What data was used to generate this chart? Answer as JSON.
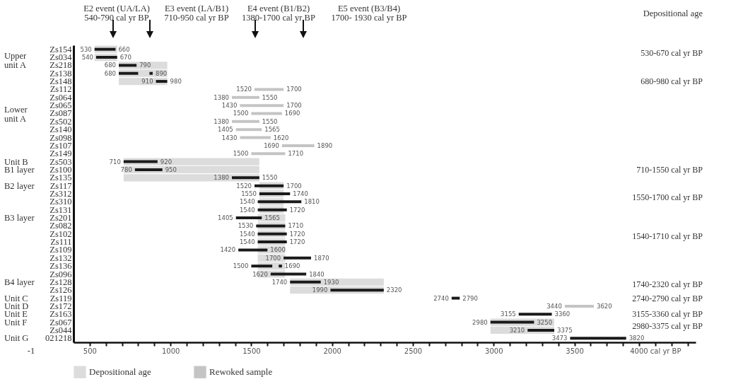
{
  "chart_data": {
    "type": "bar",
    "orientation": "horizontal",
    "grid": false,
    "legend": "bottom left",
    "categories": [
      "Zs154",
      "Zs034",
      "Zs218",
      "Zs138",
      "Zs148",
      "Zs112",
      "Zs064",
      "Zs065",
      "Zs087",
      "Zs502",
      "Zs140",
      "Zs098",
      "Zs107",
      "Zs149",
      "Zs503",
      "Zs100",
      "Zs135",
      "Zs117",
      "Zs312",
      "Zs310",
      "Zs131",
      "Zs201",
      "Zs082",
      "Zs102",
      "Zs111",
      "Zs109",
      "Zs132",
      "Zs136",
      "Zs096",
      "Zs128",
      "Zs126",
      "Zs119",
      "Zs172",
      "Zs163",
      "Zs067",
      "Zs044",
      "021218"
    ],
    "xlim": [
      400,
      4250
    ],
    "xticks": [
      500,
      {
        "value": 600,
        "label": null
      },
      {
        "value": 700,
        "label": null
      },
      {
        "value": 800,
        "label": null
      },
      {
        "value": 900,
        "label": null
      },
      1000,
      {
        "value": 1100,
        "label": null
      },
      {
        "value": 1200,
        "label": null
      },
      {
        "value": 1300,
        "label": null
      },
      {
        "value": 1400,
        "label": null
      },
      1500,
      {
        "value": 1600,
        "label": null
      },
      {
        "value": 1700,
        "label": null
      },
      {
        "value": 1800,
        "label": null
      },
      {
        "value": 1900,
        "label": null
      },
      2000,
      {
        "value": 2100,
        "label": null
      },
      {
        "value": 2200,
        "label": null
      },
      {
        "value": 2300,
        "label": null
      },
      {
        "value": 2400,
        "label": null
      },
      2500,
      {
        "value": 2600,
        "label": null
      },
      {
        "value": 2700,
        "label": null
      },
      {
        "value": 2800,
        "label": null
      },
      {
        "value": 2900,
        "label": null
      },
      3000,
      {
        "value": 3100,
        "label": null
      },
      {
        "value": 3200,
        "label": null
      },
      {
        "value": 3300,
        "label": null
      },
      {
        "value": 3400,
        "label": null
      },
      3500,
      {
        "value": 3600,
        "label": null
      },
      {
        "value": 3700,
        "label": null
      },
      {
        "value": 3800,
        "label": null
      },
      {
        "value": 3900,
        "label": null
      },
      {
        "value": 4000,
        "label": "4000 cal yr BP"
      },
      {
        "value": 4100,
        "label": null
      },
      {
        "value": 4200,
        "label": null
      }
    ],
    "series": [
      {
        "name": "Depositional age",
        "color": "#dcdcdc",
        "base": [
          530,
          530,
          680,
          680,
          680,
          null,
          null,
          null,
          null,
          null,
          null,
          null,
          null,
          null,
          710,
          710,
          710,
          1550,
          1550,
          1550,
          1550,
          1540,
          1540,
          1540,
          1540,
          1540,
          1540,
          1540,
          1540,
          1740,
          1740,
          null,
          null,
          null,
          2980,
          2980,
          null
        ],
        "values": [
          140,
          140,
          300,
          300,
          300,
          null,
          null,
          null,
          null,
          null,
          null,
          null,
          null,
          null,
          840,
          840,
          840,
          150,
          150,
          150,
          150,
          170,
          170,
          170,
          170,
          170,
          170,
          170,
          170,
          580,
          580,
          null,
          null,
          null,
          395,
          395,
          null
        ]
      },
      {
        "color": "#1a1a1a",
        "base": [
          530,
          540,
          680,
          680,
          910,
          null,
          null,
          null,
          null,
          null,
          null,
          null,
          null,
          null,
          710,
          780,
          1380,
          1520,
          1550,
          1540,
          1540,
          1405,
          1530,
          1540,
          1540,
          1420,
          1700,
          1500,
          1620,
          1740,
          1990,
          2740,
          null,
          3155,
          2980,
          3210,
          3473
        ],
        "values": [
          130,
          130,
          110,
          120,
          70,
          null,
          null,
          null,
          null,
          null,
          null,
          null,
          null,
          null,
          210,
          170,
          170,
          180,
          190,
          270,
          180,
          160,
          180,
          180,
          180,
          180,
          170,
          130,
          220,
          190,
          330,
          50,
          null,
          205,
          270,
          165,
          347
        ]
      },
      {
        "color": "#1a1a1a",
        "base": [
          null,
          null,
          null,
          870,
          null,
          null,
          null,
          null,
          null,
          null,
          null,
          null,
          null,
          null,
          null,
          null,
          null,
          null,
          null,
          null,
          null,
          null,
          null,
          null,
          null,
          null,
          null,
          1670,
          null,
          null,
          null,
          null,
          null,
          null,
          null,
          null,
          null
        ],
        "values": [
          null,
          null,
          null,
          20,
          null,
          null,
          null,
          null,
          null,
          null,
          null,
          null,
          null,
          null,
          null,
          null,
          null,
          null,
          null,
          null,
          null,
          null,
          null,
          null,
          null,
          null,
          null,
          20,
          null,
          null,
          null,
          null,
          null,
          null,
          null,
          null,
          null
        ]
      },
      {
        "name": "Rewoked sample",
        "color": "#c4c4c4",
        "base": [
          null,
          null,
          null,
          null,
          null,
          1520,
          1380,
          1430,
          1500,
          1380,
          1405,
          1430,
          1690,
          1500,
          null,
          null,
          null,
          null,
          null,
          null,
          null,
          null,
          null,
          null,
          null,
          null,
          null,
          null,
          null,
          null,
          null,
          null,
          3440,
          null,
          null,
          null,
          null
        ],
        "values": [
          null,
          null,
          null,
          null,
          null,
          180,
          170,
          270,
          190,
          170,
          160,
          190,
          200,
          210,
          null,
          null,
          null,
          null,
          null,
          null,
          null,
          null,
          null,
          null,
          null,
          null,
          null,
          null,
          null,
          null,
          null,
          null,
          180,
          null,
          null,
          null,
          null
        ]
      }
    ],
    "annotations": [
      "Depositional age",
      "-1",
      "E2 event (UA/LA)\n540-790 cal yr BP",
      "E3 event (LA/B1)\n710-950 cal yr BP",
      "E4 event (B1/B2)\n1380-1700 cal yr BP",
      "E5 event (B3/B4)\n1700- 1930 cal yr BP",
      "Upper\nunit A",
      "Lower\nunit A",
      "Unit B",
      "B1 layer",
      "B2 layer",
      "B3 layer",
      "B4 layer",
      "Unit C",
      "Unit D",
      "Unit E",
      "Unit F",
      "Unit G",
      "530-670 cal yr BP",
      "680-980 cal yr BP",
      "710-1550 cal yr BP",
      "1550-1700 cal yr BP",
      "1540-1710 cal yr BP",
      "1740-2320 cal yr BP",
      "2740-2790 cal yr BP",
      "3155-3360 cal yr BP",
      "2980-3375 cal yr BP",
      {
        "text": "530",
        "x": 530,
        "y": "Zs154"
      },
      {
        "text": "660",
        "x": 660,
        "y": "Zs154"
      },
      {
        "text": "540",
        "x": 540,
        "y": "Zs034"
      },
      {
        "text": "670",
        "x": 670,
        "y": "Zs034"
      },
      {
        "text": "680",
        "x": 680,
        "y": "Zs218"
      },
      {
        "text": "790",
        "x": 790,
        "y": "Zs218"
      },
      {
        "text": "680",
        "x": 680,
        "y": "Zs138"
      },
      {
        "text": "890",
        "x": 890,
        "y": "Zs138"
      },
      {
        "text": "910",
        "x": 910,
        "y": "Zs148"
      },
      {
        "text": "980",
        "x": 980,
        "y": "Zs148"
      },
      {
        "text": "1520",
        "x": 1520,
        "y": "Zs112"
      },
      {
        "text": "1700",
        "x": 1700,
        "y": "Zs112"
      },
      {
        "text": "1380",
        "x": 1380,
        "y": "Zs064"
      },
      {
        "text": "1550",
        "x": 1550,
        "y": "Zs064"
      },
      {
        "text": "1430",
        "x": 1430,
        "y": "Zs065"
      },
      {
        "text": "1700",
        "x": 1700,
        "y": "Zs065"
      },
      {
        "text": "1500",
        "x": 1500,
        "y": "Zs087"
      },
      {
        "text": "1690",
        "x": 1690,
        "y": "Zs087"
      },
      {
        "text": "1380",
        "x": 1380,
        "y": "Zs502"
      },
      {
        "text": "1550",
        "x": 1550,
        "y": "Zs502"
      },
      {
        "text": "1405",
        "x": 1405,
        "y": "Zs140"
      },
      {
        "text": "1565",
        "x": 1565,
        "y": "Zs140"
      },
      {
        "text": "1430",
        "x": 1430,
        "y": "Zs098"
      },
      {
        "text": "1620",
        "x": 1620,
        "y": "Zs098"
      },
      {
        "text": "1690",
        "x": 1690,
        "y": "Zs107"
      },
      {
        "text": "1890",
        "x": 1890,
        "y": "Zs107"
      },
      {
        "text": "1500",
        "x": 1500,
        "y": "Zs149"
      },
      {
        "text": "1710",
        "x": 1710,
        "y": "Zs149"
      },
      {
        "text": "710",
        "x": 710,
        "y": "Zs503"
      },
      {
        "text": "920",
        "x": 920,
        "y": "Zs503"
      },
      {
        "text": "780",
        "x": 780,
        "y": "Zs100"
      },
      {
        "text": "950",
        "x": 950,
        "y": "Zs100"
      },
      {
        "text": "1380",
        "x": 1380,
        "y": "Zs135"
      },
      {
        "text": "1550",
        "x": 1550,
        "y": "Zs135"
      },
      {
        "text": "1520",
        "x": 1520,
        "y": "Zs117"
      },
      {
        "text": "1700",
        "x": 1700,
        "y": "Zs117"
      },
      {
        "text": "1550",
        "x": 1550,
        "y": "Zs312"
      },
      {
        "text": "1740",
        "x": 1740,
        "y": "Zs312"
      },
      {
        "text": "1540",
        "x": 1540,
        "y": "Zs310"
      },
      {
        "text": "1810",
        "x": 1810,
        "y": "Zs310"
      },
      {
        "text": "1540",
        "x": 1540,
        "y": "Zs131"
      },
      {
        "text": "1720",
        "x": 1720,
        "y": "Zs131"
      },
      {
        "text": "1405",
        "x": 1405,
        "y": "Zs201"
      },
      {
        "text": "1565",
        "x": 1565,
        "y": "Zs201"
      },
      {
        "text": "1530",
        "x": 1530,
        "y": "Zs082"
      },
      {
        "text": "1710",
        "x": 1710,
        "y": "Zs082"
      },
      {
        "text": "1540",
        "x": 1540,
        "y": "Zs102"
      },
      {
        "text": "1720",
        "x": 1720,
        "y": "Zs102"
      },
      {
        "text": "1540",
        "x": 1540,
        "y": "Zs111"
      },
      {
        "text": "1720",
        "x": 1720,
        "y": "Zs111"
      },
      {
        "text": "1420",
        "x": 1420,
        "y": "Zs109"
      },
      {
        "text": "1600",
        "x": 1600,
        "y": "Zs109"
      },
      {
        "text": "1700",
        "x": 1700,
        "y": "Zs132"
      },
      {
        "text": "1870",
        "x": 1870,
        "y": "Zs132"
      },
      {
        "text": "1500",
        "x": 1500,
        "y": "Zs136"
      },
      {
        "text": "1690",
        "x": 1690,
        "y": "Zs136"
      },
      {
        "text": "1620",
        "x": 1620,
        "y": "Zs096"
      },
      {
        "text": "1840",
        "x": 1840,
        "y": "Zs096"
      },
      {
        "text": "1740",
        "x": 1740,
        "y": "Zs128"
      },
      {
        "text": "1930",
        "x": 1930,
        "y": "Zs128"
      },
      {
        "text": "1990",
        "x": 1990,
        "y": "Zs126"
      },
      {
        "text": "2320",
        "x": 2320,
        "y": "Zs126"
      },
      {
        "text": "2740",
        "x": 2740,
        "y": "Zs119"
      },
      {
        "text": "2790",
        "x": 2790,
        "y": "Zs119"
      },
      {
        "text": "3440",
        "x": 3440,
        "y": "Zs172"
      },
      {
        "text": "3620",
        "x": 3620,
        "y": "Zs172"
      },
      {
        "text": "3155",
        "x": 3155,
        "y": "Zs163"
      },
      {
        "text": "3360",
        "x": 3360,
        "y": "Zs163"
      },
      {
        "text": "2980",
        "x": 2980,
        "y": "Zs067"
      },
      {
        "text": "3250",
        "x": 3250,
        "y": "Zs067"
      },
      {
        "text": "3210",
        "x": 3210,
        "y": "Zs044"
      },
      {
        "text": "3375",
        "x": 3375,
        "y": "Zs044"
      },
      {
        "text": "3473",
        "x": 3473,
        "y": "021218"
      },
      {
        "text": "3820",
        "x": 3820,
        "y": "021218"
      }
    ]
  }
}
